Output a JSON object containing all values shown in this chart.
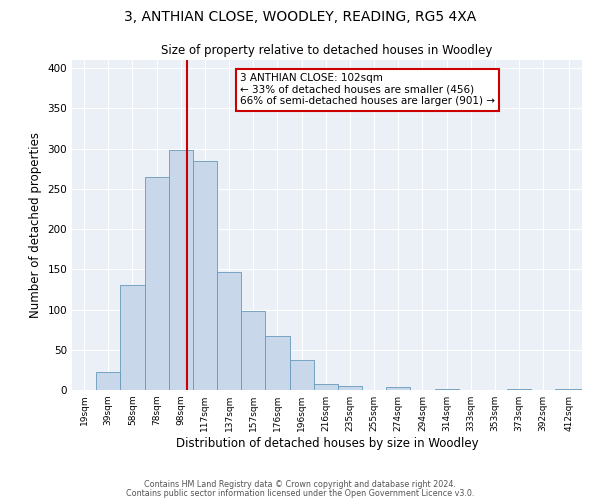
{
  "title": "3, ANTHIAN CLOSE, WOODLEY, READING, RG5 4XA",
  "subtitle": "Size of property relative to detached houses in Woodley",
  "xlabel": "Distribution of detached houses by size in Woodley",
  "ylabel": "Number of detached properties",
  "bar_color": "#c8d8ea",
  "bar_edgecolor": "#6699bb",
  "background_color": "#eaf0f6",
  "grid_color": "#ffffff",
  "annotation_box_edgecolor": "#cc0000",
  "annotation_line_color": "#cc0000",
  "property_line_x": 102,
  "categories": [
    "19sqm",
    "39sqm",
    "58sqm",
    "78sqm",
    "98sqm",
    "117sqm",
    "137sqm",
    "157sqm",
    "176sqm",
    "196sqm",
    "216sqm",
    "235sqm",
    "255sqm",
    "274sqm",
    "294sqm",
    "314sqm",
    "333sqm",
    "353sqm",
    "373sqm",
    "392sqm",
    "412sqm"
  ],
  "bin_edges": [
    9.5,
    29,
    48.5,
    68,
    87.5,
    107,
    126.5,
    146,
    165.5,
    185,
    204.5,
    224,
    243.5,
    263,
    282.5,
    302,
    321.5,
    341,
    360.5,
    380,
    399.5,
    421
  ],
  "values": [
    0,
    22,
    130,
    265,
    298,
    285,
    147,
    98,
    67,
    37,
    8,
    5,
    0,
    4,
    0,
    1,
    0,
    0,
    1,
    0,
    1
  ],
  "annotation_line1": "3 ANTHIAN CLOSE: 102sqm",
  "annotation_line2": "← 33% of detached houses are smaller (456)",
  "annotation_line3": "66% of semi-detached houses are larger (901) →",
  "ylim": [
    0,
    410
  ],
  "yticks": [
    0,
    50,
    100,
    150,
    200,
    250,
    300,
    350,
    400
  ],
  "footer_line1": "Contains HM Land Registry data © Crown copyright and database right 2024.",
  "footer_line2": "Contains public sector information licensed under the Open Government Licence v3.0."
}
